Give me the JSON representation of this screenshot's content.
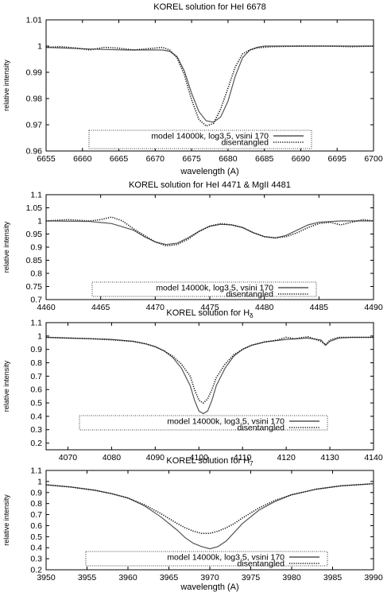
{
  "chart_data": [
    {
      "type": "line",
      "title": "KOREL solution for HeI 6678",
      "xlabel": "wavelength (A)",
      "ylabel": "relative intensity",
      "xlim": [
        6655,
        6700
      ],
      "ylim": [
        0.96,
        1.01
      ],
      "xticks": [
        "6655",
        "6660",
        "6665",
        "6670",
        "6675",
        "6680",
        "6685",
        "6690",
        "6695",
        "6700"
      ],
      "yticks": [
        "0.96",
        "0.97",
        "0.98",
        "0.99",
        "1",
        "1.01"
      ],
      "legend_position": "bottom-center",
      "series": [
        {
          "name": "model 14000k, log3.5, vsini 170",
          "style": "solid",
          "x": [
            6655,
            6660,
            6663,
            6666,
            6669,
            6671,
            6672,
            6673,
            6674,
            6675,
            6676,
            6677,
            6678,
            6679,
            6680,
            6681,
            6682,
            6683,
            6684,
            6685,
            6688,
            6691,
            6694,
            6697,
            6700
          ],
          "y": [
            0.9995,
            0.999,
            0.9987,
            0.9985,
            0.9985,
            0.9985,
            0.998,
            0.996,
            0.9905,
            0.982,
            0.975,
            0.9715,
            0.971,
            0.973,
            0.979,
            0.9885,
            0.9955,
            0.9985,
            0.9995,
            1.0,
            1.0,
            1.0,
            1.0,
            1.0,
            1.0
          ]
        },
        {
          "name": "disentangled",
          "style": "dotted",
          "x": [
            6655,
            6657,
            6659,
            6661,
            6663,
            6665,
            6667,
            6669,
            6671,
            6672,
            6673,
            6674,
            6675,
            6676,
            6677,
            6678,
            6679,
            6680,
            6681,
            6682,
            6683,
            6684,
            6686,
            6690,
            6694,
            6697,
            6700
          ],
          "y": [
            0.9995,
            0.9998,
            0.9993,
            0.9985,
            0.9995,
            0.9992,
            0.9985,
            0.999,
            0.9995,
            0.9985,
            0.9955,
            0.989,
            0.9795,
            0.972,
            0.9695,
            0.9705,
            0.976,
            0.984,
            0.992,
            0.997,
            0.9985,
            0.9993,
            0.9998,
            1.0,
            1.0,
            0.9998,
            1.0
          ]
        }
      ]
    },
    {
      "type": "line",
      "title": "KOREL solution for HeI 4471 & MgII 4481",
      "xlabel": "",
      "ylabel": "relative intensity",
      "xlim": [
        4460,
        4490
      ],
      "ylim": [
        0.7,
        1.1
      ],
      "xticks": [
        "4460",
        "4465",
        "4470",
        "4475",
        "4480",
        "4485",
        "4490"
      ],
      "yticks": [
        "0.7",
        "0.75",
        "0.8",
        "0.85",
        "0.9",
        "0.95",
        "1",
        "1.05",
        "1.1"
      ],
      "legend_position": "bottom-center",
      "series": [
        {
          "name": "model 14000k, log3.5, vsini 170",
          "style": "solid",
          "x": [
            4460,
            4464,
            4466,
            4468,
            4469,
            4470,
            4471,
            4472,
            4473,
            4474,
            4475,
            4476,
            4477,
            4478,
            4479,
            4480,
            4481,
            4482,
            4483,
            4484,
            4485,
            4487,
            4490
          ],
          "y": [
            1.0,
            0.998,
            0.99,
            0.965,
            0.94,
            0.92,
            0.91,
            0.915,
            0.935,
            0.96,
            0.98,
            0.987,
            0.985,
            0.975,
            0.955,
            0.94,
            0.935,
            0.945,
            0.965,
            0.985,
            0.995,
            1.0,
            1.0
          ]
        },
        {
          "name": "disentangled",
          "style": "dotted",
          "x": [
            4460,
            4462,
            4464,
            4465,
            4466,
            4467,
            4468,
            4469,
            4470,
            4471,
            4472,
            4473,
            4474,
            4475,
            4476,
            4477,
            4478,
            4479,
            4480,
            4481,
            4482,
            4483,
            4484,
            4485,
            4486,
            4487,
            4488,
            4489,
            4490
          ],
          "y": [
            1.0,
            1.005,
            1.0,
            1.005,
            1.015,
            1.0,
            0.97,
            0.945,
            0.92,
            0.905,
            0.91,
            0.93,
            0.96,
            0.98,
            0.99,
            0.985,
            0.975,
            0.955,
            0.94,
            0.935,
            0.94,
            0.955,
            0.975,
            0.99,
            0.995,
            0.985,
            0.995,
            1.005,
            1.0
          ]
        }
      ]
    },
    {
      "type": "line",
      "title": "KOREL solution for H_δ",
      "xlabel": "",
      "ylabel": "relative intensity",
      "xlim": [
        4065,
        4140
      ],
      "ylim": [
        0.15,
        1.1
      ],
      "xticks": [
        "4070",
        "4080",
        "4090",
        "4100",
        "4110",
        "4120",
        "4130",
        "4140"
      ],
      "yticks": [
        "0.2",
        "0.3",
        "0.4",
        "0.5",
        "0.6",
        "0.7",
        "0.8",
        "0.9",
        "1",
        "1.1"
      ],
      "legend_position": "bottom-center",
      "series": [
        {
          "name": "model 14000k, log3.5, vsini 170",
          "style": "solid",
          "x": [
            4065,
            4070,
            4075,
            4080,
            4085,
            4088,
            4090,
            4092,
            4094,
            4096,
            4098,
            4099,
            4100,
            4101,
            4102,
            4103,
            4104,
            4106,
            4108,
            4110,
            4112,
            4115,
            4120,
            4125,
            4128,
            4129,
            4130,
            4132,
            4135,
            4140
          ],
          "y": [
            0.99,
            0.985,
            0.98,
            0.975,
            0.96,
            0.94,
            0.92,
            0.89,
            0.84,
            0.76,
            0.63,
            0.52,
            0.44,
            0.42,
            0.44,
            0.52,
            0.63,
            0.76,
            0.85,
            0.9,
            0.93,
            0.955,
            0.975,
            0.985,
            0.97,
            0.93,
            0.96,
            0.985,
            0.99,
            0.99
          ]
        },
        {
          "name": "disentangled",
          "style": "dotted",
          "x": [
            4065,
            4070,
            4075,
            4080,
            4085,
            4088,
            4090,
            4092,
            4094,
            4096,
            4098,
            4099,
            4100,
            4101,
            4102,
            4103,
            4104,
            4106,
            4108,
            4110,
            4112,
            4115,
            4118,
            4120,
            4122,
            4125,
            4128,
            4129,
            4130,
            4132,
            4135,
            4140
          ],
          "y": [
            0.99,
            0.985,
            0.98,
            0.972,
            0.96,
            0.94,
            0.92,
            0.89,
            0.85,
            0.79,
            0.7,
            0.6,
            0.52,
            0.5,
            0.53,
            0.6,
            0.69,
            0.79,
            0.86,
            0.9,
            0.93,
            0.955,
            0.97,
            0.99,
            0.98,
            0.995,
            0.96,
            0.935,
            0.97,
            0.99,
            0.99,
            0.99
          ]
        }
      ]
    },
    {
      "type": "line",
      "title": "KOREL solution for H_7",
      "xlabel": "wavelength (A)",
      "ylabel": "relative intensity",
      "xlim": [
        3950,
        3990
      ],
      "ylim": [
        0.2,
        1.1
      ],
      "xticks": [
        "3950",
        "3955",
        "3960",
        "3965",
        "3970",
        "3975",
        "3980",
        "3985",
        "3990"
      ],
      "yticks": [
        "0.2",
        "0.3",
        "0.4",
        "0.5",
        "0.6",
        "0.7",
        "0.8",
        "0.9",
        "1",
        "1.1"
      ],
      "legend_position": "bottom-center",
      "series": [
        {
          "name": "model 14000k, log3.5, vsini 170",
          "style": "solid",
          "x": [
            3950,
            3953,
            3956,
            3958,
            3960,
            3962,
            3964,
            3966,
            3967,
            3968,
            3969,
            3970,
            3971,
            3972,
            3973,
            3974,
            3976,
            3978,
            3980,
            3983,
            3986,
            3990
          ],
          "y": [
            0.97,
            0.95,
            0.92,
            0.89,
            0.85,
            0.78,
            0.68,
            0.56,
            0.49,
            0.44,
            0.41,
            0.39,
            0.41,
            0.46,
            0.54,
            0.62,
            0.74,
            0.82,
            0.88,
            0.93,
            0.96,
            0.98
          ]
        },
        {
          "name": "disentangled",
          "style": "dotted",
          "x": [
            3950,
            3953,
            3956,
            3958,
            3960,
            3962,
            3964,
            3966,
            3967,
            3968,
            3969,
            3970,
            3971,
            3972,
            3973,
            3974,
            3976,
            3978,
            3980,
            3983,
            3986,
            3990
          ],
          "y": [
            0.97,
            0.95,
            0.92,
            0.89,
            0.85,
            0.79,
            0.71,
            0.62,
            0.58,
            0.55,
            0.53,
            0.53,
            0.55,
            0.58,
            0.62,
            0.67,
            0.76,
            0.83,
            0.88,
            0.93,
            0.96,
            0.98
          ]
        }
      ]
    }
  ]
}
